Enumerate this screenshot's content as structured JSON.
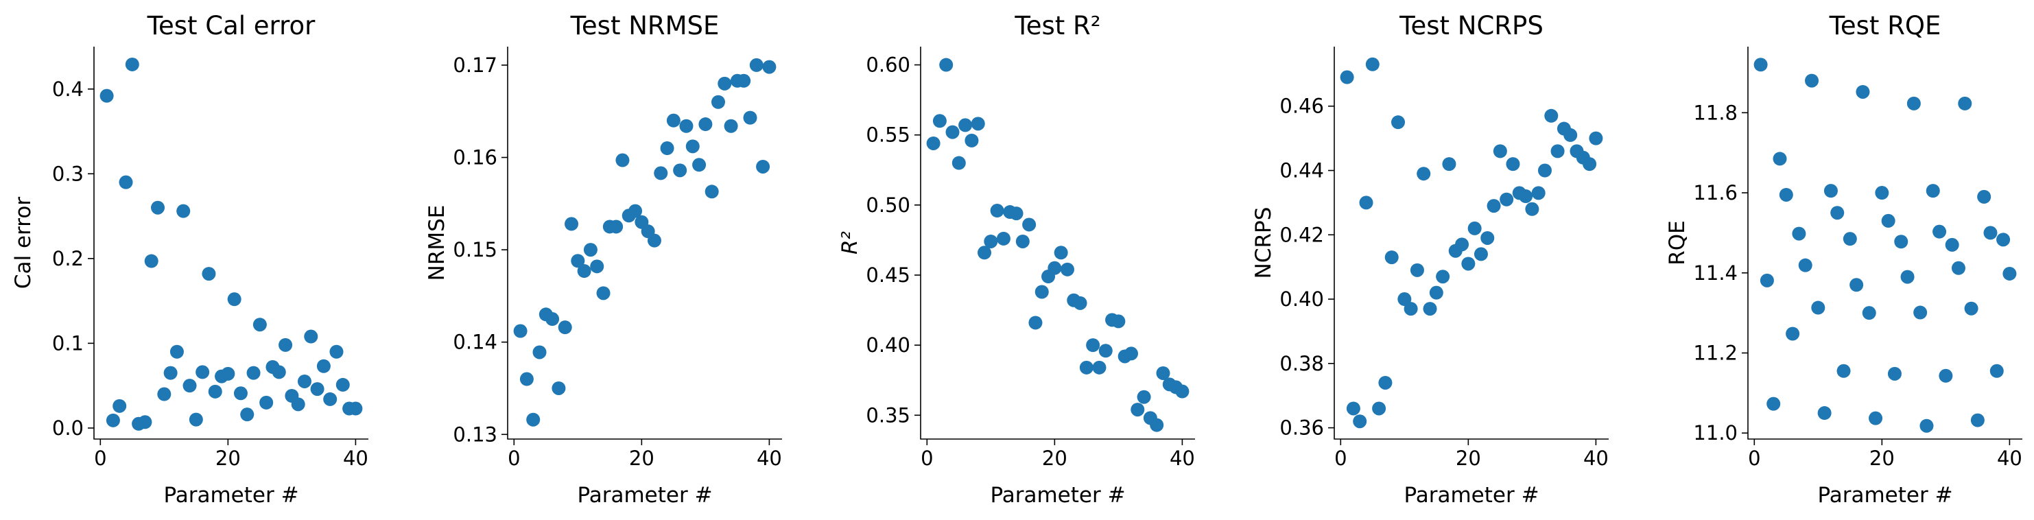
{
  "chart_data": [
    {
      "type": "scatter",
      "title": "Test Cal error",
      "xlabel": "Parameter #",
      "ylabel": "Cal error",
      "xlim": [
        -1,
        42
      ],
      "ylim": [
        -0.013,
        0.45
      ],
      "xticks": [
        "0",
        "20",
        "40"
      ],
      "yticks": [
        "0.0",
        "0.1",
        "0.2",
        "0.3",
        "0.4"
      ],
      "ytick_values": [
        0.0,
        0.1,
        0.2,
        0.3,
        0.4
      ],
      "color": "#1f77b4",
      "x": [
        1,
        2,
        3,
        4,
        5,
        6,
        7,
        8,
        9,
        10,
        11,
        12,
        13,
        14,
        15,
        16,
        17,
        18,
        19,
        20,
        21,
        22,
        23,
        24,
        25,
        26,
        27,
        28,
        29,
        30,
        31,
        32,
        33,
        34,
        35,
        36,
        37,
        38,
        39,
        40
      ],
      "y": [
        0.392,
        0.009,
        0.026,
        0.29,
        0.429,
        0.005,
        0.007,
        0.197,
        0.26,
        0.04,
        0.065,
        0.09,
        0.256,
        0.05,
        0.01,
        0.066,
        0.182,
        0.043,
        0.061,
        0.064,
        0.152,
        0.041,
        0.016,
        0.065,
        0.122,
        0.03,
        0.072,
        0.066,
        0.098,
        0.038,
        0.028,
        0.055,
        0.108,
        0.046,
        0.073,
        0.034,
        0.09,
        0.051,
        0.023,
        0.023
      ]
    },
    {
      "type": "scatter",
      "title": "Test NRMSE",
      "xlabel": "Parameter #",
      "ylabel": "NRMSE",
      "xlim": [
        -1,
        42
      ],
      "ylim": [
        0.1295,
        0.172
      ],
      "xticks": [
        "0",
        "20",
        "40"
      ],
      "yticks": [
        "0.13",
        "0.14",
        "0.15",
        "0.16",
        "0.17"
      ],
      "ytick_values": [
        0.13,
        0.14,
        0.15,
        0.16,
        0.17
      ],
      "color": "#1f77b4",
      "x": [
        1,
        2,
        3,
        4,
        5,
        6,
        7,
        8,
        9,
        10,
        11,
        12,
        13,
        14,
        15,
        16,
        17,
        18,
        19,
        20,
        21,
        22,
        23,
        24,
        25,
        26,
        27,
        28,
        29,
        30,
        31,
        32,
        33,
        34,
        35,
        36,
        37,
        38,
        39,
        40
      ],
      "y": [
        0.1412,
        0.136,
        0.1316,
        0.1389,
        0.143,
        0.1425,
        0.135,
        0.1416,
        0.1528,
        0.1488,
        0.1477,
        0.15,
        0.1482,
        0.1453,
        0.1525,
        0.1525,
        0.1597,
        0.1537,
        0.1542,
        0.153,
        0.152,
        0.151,
        0.1583,
        0.161,
        0.164,
        0.1586,
        0.1634,
        0.1612,
        0.1592,
        0.1636,
        0.1563,
        0.166,
        0.168,
        0.1634,
        0.1683,
        0.1683,
        0.1643,
        0.17,
        0.159,
        0.1698
      ]
    },
    {
      "type": "scatter",
      "title": "Test R²",
      "xlabel": "Parameter #",
      "ylabel": "R²",
      "xlim": [
        -1,
        42
      ],
      "ylim": [
        0.333,
        0.613
      ],
      "xticks": [
        "0",
        "20",
        "40"
      ],
      "yticks": [
        "0.35",
        "0.40",
        "0.45",
        "0.50",
        "0.55",
        "0.60"
      ],
      "ytick_values": [
        0.35,
        0.4,
        0.45,
        0.5,
        0.55,
        0.6
      ],
      "color": "#1f77b4",
      "x": [
        1,
        2,
        3,
        4,
        5,
        6,
        7,
        8,
        9,
        10,
        11,
        12,
        13,
        14,
        15,
        16,
        17,
        18,
        19,
        20,
        21,
        22,
        23,
        24,
        25,
        26,
        27,
        28,
        29,
        30,
        31,
        32,
        33,
        34,
        35,
        36,
        37,
        38,
        39,
        40
      ],
      "y": [
        0.544,
        0.56,
        0.6,
        0.552,
        0.53,
        0.557,
        0.546,
        0.558,
        0.466,
        0.474,
        0.496,
        0.476,
        0.495,
        0.494,
        0.474,
        0.486,
        0.416,
        0.438,
        0.449,
        0.455,
        0.466,
        0.454,
        0.432,
        0.43,
        0.384,
        0.4,
        0.384,
        0.396,
        0.418,
        0.417,
        0.392,
        0.394,
        0.354,
        0.363,
        0.348,
        0.343,
        0.38,
        0.372,
        0.37,
        0.367
      ]
    },
    {
      "type": "scatter",
      "title": "Test NCRPS",
      "xlabel": "Parameter #",
      "ylabel": "NCRPS",
      "xlim": [
        -1,
        42
      ],
      "ylim": [
        0.3565,
        0.4785
      ],
      "xticks": [
        "0",
        "20",
        "40"
      ],
      "yticks": [
        "0.36",
        "0.38",
        "0.40",
        "0.42",
        "0.44",
        "0.46"
      ],
      "ytick_values": [
        0.36,
        0.38,
        0.4,
        0.42,
        0.44,
        0.46
      ],
      "color": "#1f77b4",
      "x": [
        1,
        2,
        3,
        4,
        5,
        6,
        7,
        8,
        9,
        10,
        11,
        12,
        13,
        14,
        15,
        16,
        17,
        18,
        19,
        20,
        21,
        22,
        23,
        24,
        25,
        26,
        27,
        28,
        29,
        30,
        31,
        32,
        33,
        34,
        35,
        36,
        37,
        38,
        39,
        40
      ],
      "y": [
        0.469,
        0.366,
        0.362,
        0.43,
        0.473,
        0.366,
        0.374,
        0.413,
        0.455,
        0.4,
        0.397,
        0.409,
        0.439,
        0.397,
        0.402,
        0.407,
        0.442,
        0.415,
        0.417,
        0.411,
        0.422,
        0.414,
        0.419,
        0.429,
        0.446,
        0.431,
        0.442,
        0.433,
        0.432,
        0.428,
        0.433,
        0.44,
        0.457,
        0.446,
        0.453,
        0.451,
        0.446,
        0.444,
        0.442,
        0.45
      ]
    },
    {
      "type": "scatter",
      "title": "Test RQE",
      "xlabel": "Parameter #",
      "ylabel": "RQE",
      "xlim": [
        -1,
        42
      ],
      "ylim": [
        10.985,
        11.965
      ],
      "xticks": [
        "0",
        "20",
        "40"
      ],
      "yticks": [
        "11.0",
        "11.2",
        "11.4",
        "11.6",
        "11.8"
      ],
      "ytick_values": [
        11.0,
        11.2,
        11.4,
        11.6,
        11.8
      ],
      "color": "#1f77b4",
      "x": [
        1,
        2,
        3,
        4,
        5,
        6,
        7,
        8,
        9,
        10,
        11,
        12,
        13,
        14,
        15,
        16,
        17,
        18,
        19,
        20,
        21,
        22,
        23,
        24,
        25,
        26,
        27,
        28,
        29,
        30,
        31,
        32,
        33,
        34,
        35,
        36,
        37,
        38,
        39,
        40
      ],
      "y": [
        11.92,
        11.381,
        11.073,
        11.685,
        11.595,
        11.248,
        11.498,
        11.419,
        11.88,
        11.313,
        11.05,
        11.605,
        11.55,
        11.155,
        11.485,
        11.37,
        11.852,
        11.3,
        11.037,
        11.6,
        11.53,
        11.148,
        11.478,
        11.39,
        11.823,
        11.301,
        11.018,
        11.605,
        11.503,
        11.143,
        11.47,
        11.412,
        11.823,
        11.311,
        11.032,
        11.59,
        11.5,
        11.155,
        11.483,
        11.398
      ]
    }
  ]
}
